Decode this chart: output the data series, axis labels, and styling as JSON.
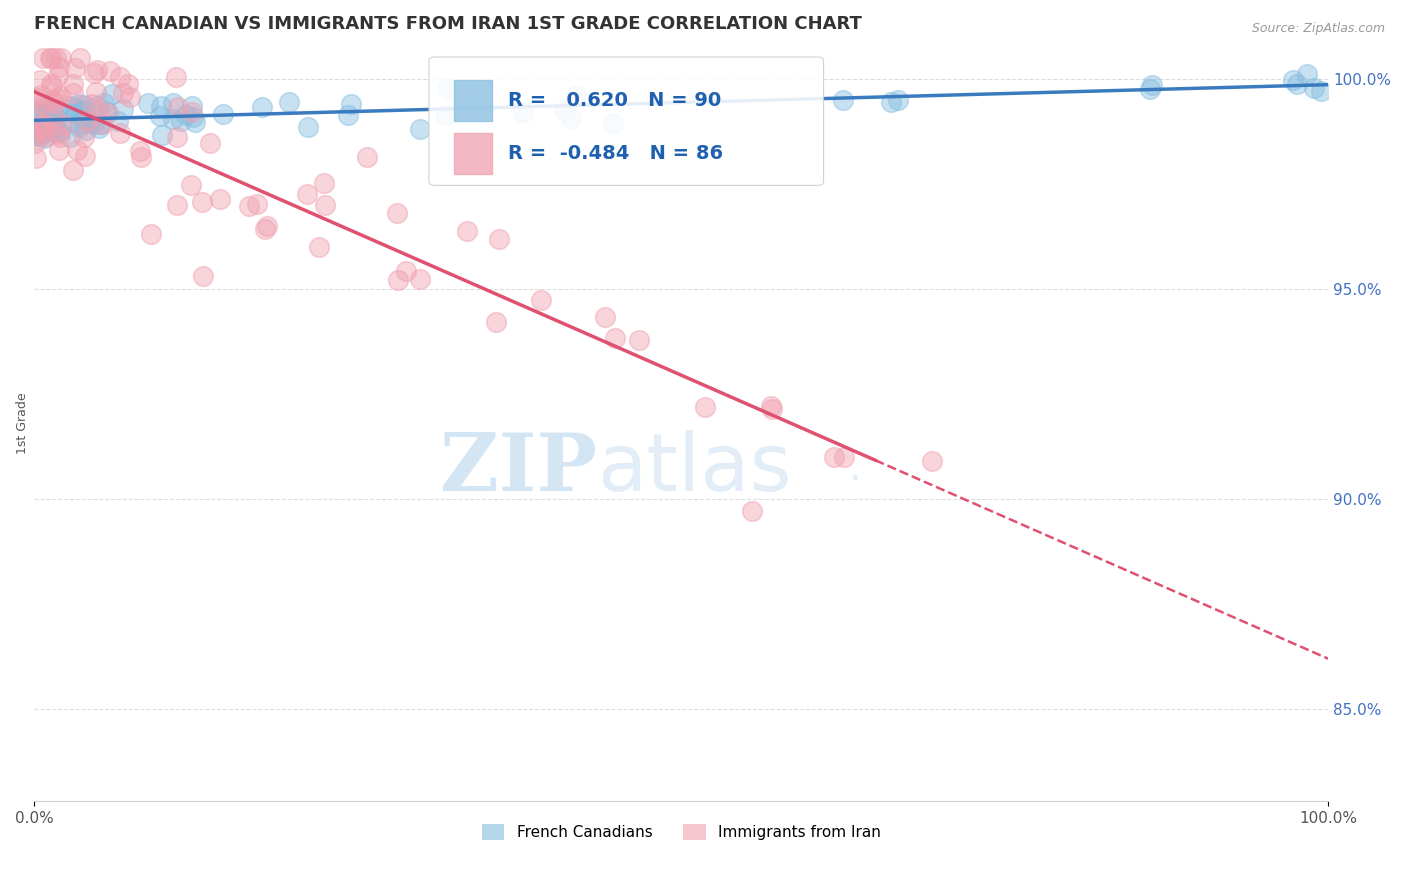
{
  "title": "FRENCH CANADIAN VS IMMIGRANTS FROM IRAN 1ST GRADE CORRELATION CHART",
  "source_text": "Source: ZipAtlas.com",
  "ylabel": "1st Grade",
  "xlim": [
    0.0,
    1.0
  ],
  "ylim": [
    0.828,
    1.008
  ],
  "y_ticks_right": [
    0.85,
    0.9,
    0.95,
    1.0
  ],
  "y_tick_labels_right": [
    "85.0%",
    "90.0%",
    "95.0%",
    "100.0%"
  ],
  "blue_color": "#85bde0",
  "blue_line_color": "#3a7bbf",
  "pink_color": "#f0a0b0",
  "pink_line_color": "#e05070",
  "blue_R": 0.62,
  "blue_N": 90,
  "pink_R": -0.484,
  "pink_N": 86,
  "legend_blue_label": "French Canadians",
  "legend_pink_label": "Immigrants from Iran",
  "watermark_zip": "ZIP",
  "watermark_atlas": "atlas",
  "watermark_dot": " .",
  "background_color": "#ffffff",
  "title_fontsize": 13,
  "grid_color": "#dddddd"
}
